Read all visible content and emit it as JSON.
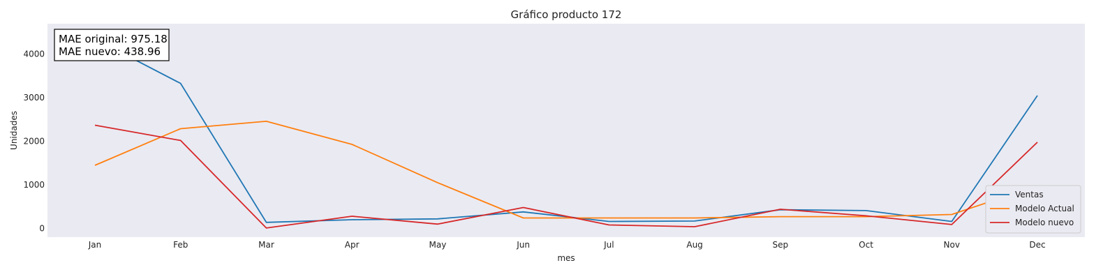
{
  "chart_data": {
    "type": "line",
    "title": "Gráfico producto 172",
    "xlabel": "mes",
    "ylabel": "Unidades",
    "categories": [
      "Jan",
      "Feb",
      "Mar",
      "Apr",
      "May",
      "Jun",
      "Jul",
      "Aug",
      "Sep",
      "Oct",
      "Nov",
      "Dec"
    ],
    "yticks": [
      0,
      1000,
      2000,
      3000,
      4000
    ],
    "ylim": [
      -200,
      4700
    ],
    "grid": false,
    "legend_position": "lower-right",
    "series": [
      {
        "name": "Ventas",
        "color": "#1f77b4",
        "values": [
          4350,
          3330,
          140,
          200,
          220,
          380,
          160,
          170,
          430,
          410,
          160,
          3050
        ]
      },
      {
        "name": "Modelo Actual",
        "color": "#ff7f0e",
        "values": [
          1450,
          2290,
          2460,
          1930,
          1050,
          240,
          240,
          240,
          270,
          270,
          320,
          980
        ]
      },
      {
        "name": "Modelo nuevo",
        "color": "#d62728",
        "values": [
          2370,
          2020,
          10,
          280,
          100,
          480,
          80,
          40,
          440,
          290,
          90,
          1980
        ]
      }
    ],
    "annotation": {
      "lines": [
        "MAE original: 975.18",
        "MAE nuevo: 438.96"
      ]
    }
  }
}
